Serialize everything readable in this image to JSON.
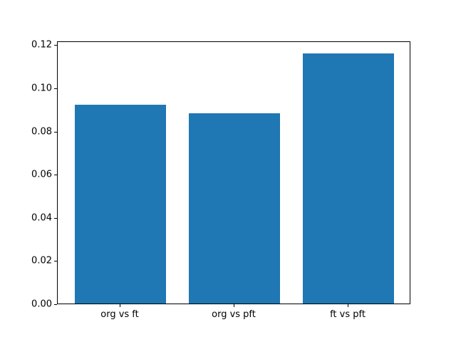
{
  "chart_data": {
    "type": "bar",
    "categories": [
      "org vs ft",
      "org vs pft",
      "ft vs pft"
    ],
    "values": [
      0.092,
      0.088,
      0.116
    ],
    "yticks": [
      0.0,
      0.02,
      0.04,
      0.06,
      0.08,
      0.1,
      0.12
    ],
    "ytick_labels": [
      "0.00",
      "0.02",
      "0.04",
      "0.06",
      "0.08",
      "0.10",
      "0.12"
    ],
    "ylim": [
      0,
      0.1218
    ],
    "xlim": [
      -0.55,
      2.55
    ],
    "bar_width": 0.8,
    "bar_color": "#1f77b4",
    "background_color": "#ffffff",
    "spine_color": "#000000",
    "grid": false,
    "legend": null
  }
}
